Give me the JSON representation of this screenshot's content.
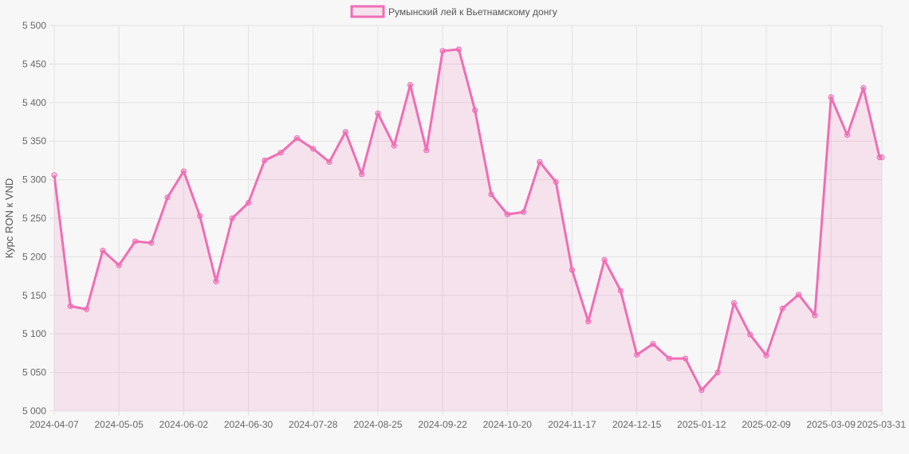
{
  "chart_data": {
    "type": "area",
    "title": "",
    "xlabel": "",
    "ylabel": "Курс RON к VND",
    "legend": {
      "position": "top-center"
    },
    "grid": true,
    "ylim": [
      5000,
      5500
    ],
    "y_ticks": [
      5000,
      5050,
      5100,
      5150,
      5200,
      5250,
      5300,
      5350,
      5400,
      5450,
      5500
    ],
    "y_tick_labels": [
      "5 000",
      "5 050",
      "5 100",
      "5 150",
      "5 200",
      "5 250",
      "5 300",
      "5 350",
      "5 400",
      "5 450",
      "5 500"
    ],
    "x_tick_labels": [
      "2024-04-07",
      "2024-05-05",
      "2024-06-02",
      "2024-06-30",
      "2024-07-28",
      "2024-08-25",
      "2024-09-22",
      "2024-10-20",
      "2024-11-17",
      "2024-12-15",
      "2025-01-12",
      "2025-02-09",
      "2025-03-09",
      "2025-03-31"
    ],
    "x_tick_positions": [
      "2024-04-07",
      "2024-05-05",
      "2024-06-02",
      "2024-06-30",
      "2024-07-28",
      "2024-08-25",
      "2024-09-22",
      "2024-10-20",
      "2024-11-17",
      "2024-12-15",
      "2025-01-12",
      "2025-02-09",
      "2025-03-09",
      "2025-03-31"
    ],
    "colors": {
      "line": "#f06eb4",
      "fill": "rgba(240,110,180,0.15)",
      "grid": "#e2e2e2",
      "background": "#f7f7f7"
    },
    "series": [
      {
        "name": "Румынский лей к Вьетнамскому донгу",
        "x": [
          "2024-04-07",
          "2024-04-14",
          "2024-04-21",
          "2024-04-28",
          "2024-05-05",
          "2024-05-12",
          "2024-05-19",
          "2024-05-26",
          "2024-06-02",
          "2024-06-09",
          "2024-06-16",
          "2024-06-23",
          "2024-06-30",
          "2024-07-07",
          "2024-07-14",
          "2024-07-21",
          "2024-07-28",
          "2024-08-04",
          "2024-08-11",
          "2024-08-18",
          "2024-08-25",
          "2024-09-01",
          "2024-09-08",
          "2024-09-15",
          "2024-09-22",
          "2024-09-29",
          "2024-10-06",
          "2024-10-13",
          "2024-10-20",
          "2024-10-27",
          "2024-11-03",
          "2024-11-10",
          "2024-11-17",
          "2024-11-24",
          "2024-12-01",
          "2024-12-08",
          "2024-12-15",
          "2024-12-22",
          "2024-12-29",
          "2025-01-05",
          "2025-01-12",
          "2025-01-19",
          "2025-01-26",
          "2025-02-02",
          "2025-02-09",
          "2025-02-16",
          "2025-02-23",
          "2025-03-02",
          "2025-03-09",
          "2025-03-16",
          "2025-03-23",
          "2025-03-30",
          "2025-03-31"
        ],
        "values": [
          5306,
          5136,
          5132,
          5208,
          5189,
          5220,
          5218,
          5277,
          5311,
          5253,
          5168,
          5250,
          5270,
          5325,
          5335,
          5354,
          5340,
          5323,
          5362,
          5307,
          5386,
          5344,
          5423,
          5338,
          5467,
          5469,
          5390,
          5281,
          5255,
          5258,
          5323,
          5297,
          5183,
          5116,
          5196,
          5156,
          5073,
          5087,
          5068,
          5068,
          5027,
          5050,
          5140,
          5099,
          5072,
          5133,
          5151,
          5124,
          5407,
          5358,
          5419,
          5329,
          5329
        ]
      }
    ]
  }
}
